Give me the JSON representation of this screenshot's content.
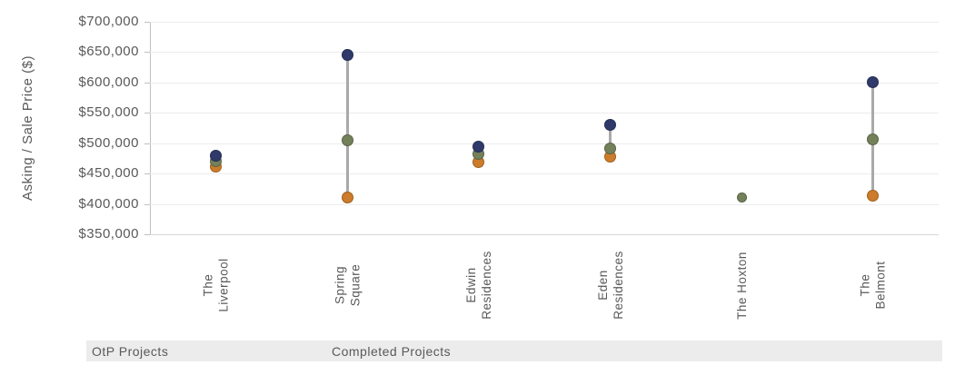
{
  "chart_data": {
    "type": "scatter",
    "title": "",
    "ylabel": "Asking / Sale Price ($)",
    "xlabel": "",
    "ylim": [
      350000,
      700000
    ],
    "ytick_step": 50000,
    "ytick_format": "$#,##0",
    "grid": true,
    "legend": false,
    "categories": [
      "The Liverpool",
      "Spring Square",
      "Edwin Residences",
      "Eden Residences",
      "The Hoxton",
      "The Belmont"
    ],
    "series": [
      {
        "name": "orange",
        "color": "#cc7c2a",
        "values": [
          462000,
          411000,
          469000,
          478000,
          null,
          413000
        ]
      },
      {
        "name": "olive",
        "color": "#73805a",
        "values": [
          470000,
          505000,
          483000,
          492000,
          410000,
          507000
        ]
      },
      {
        "name": "navy",
        "color": "#2f3a6b",
        "values": [
          480000,
          645000,
          495000,
          530000,
          null,
          600000
        ]
      }
    ],
    "connector_color": "#a9a9a9",
    "axis_group_labels": [
      "OtP Projects",
      "Completed Projects"
    ]
  }
}
